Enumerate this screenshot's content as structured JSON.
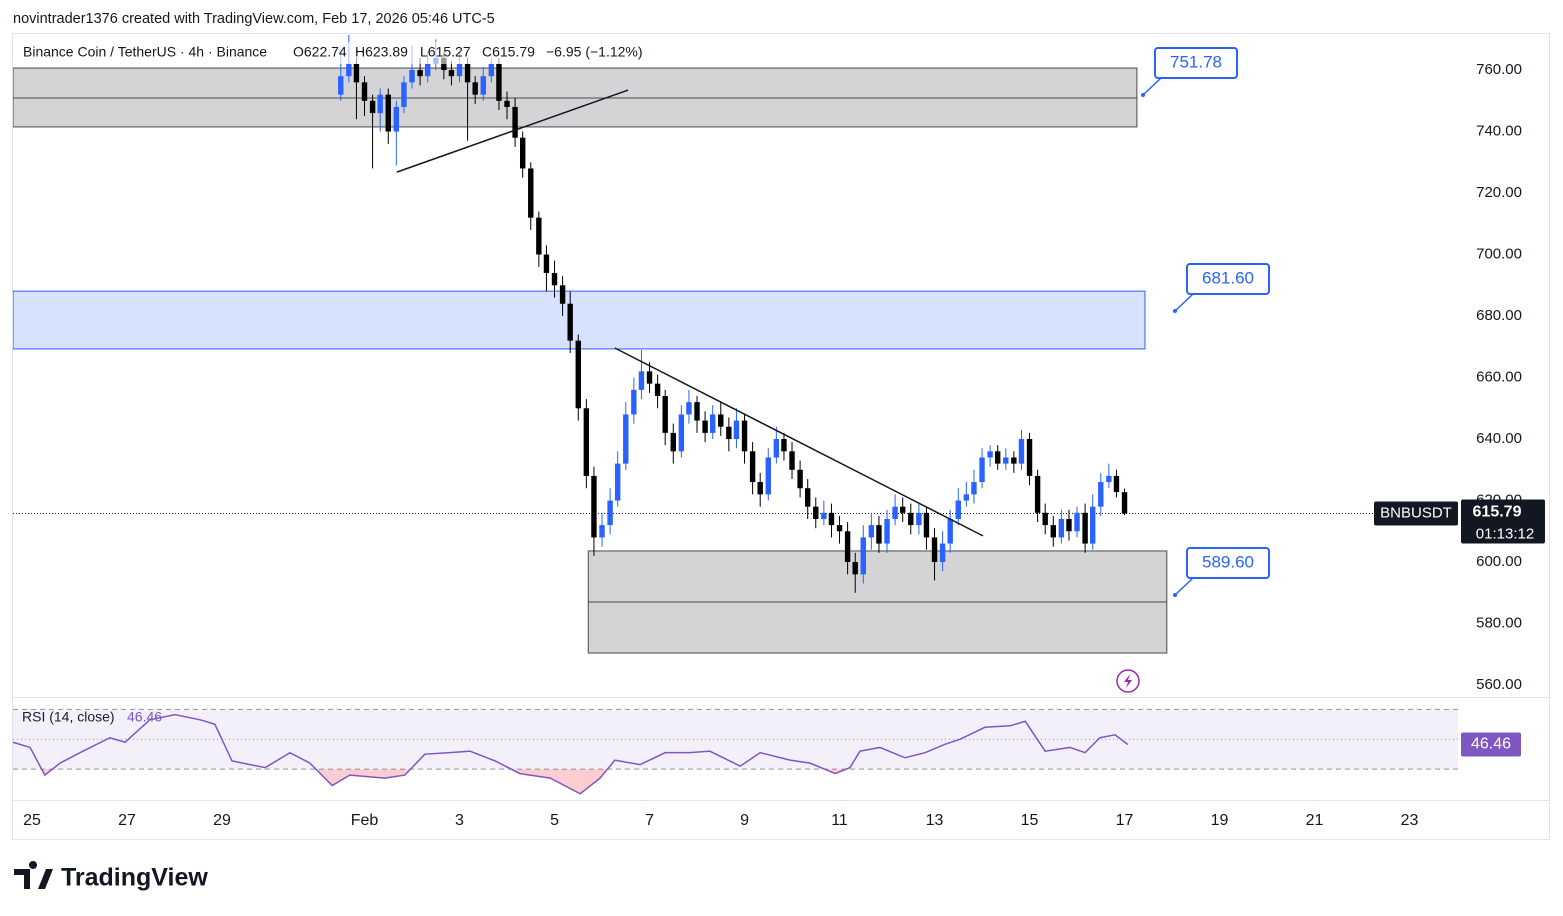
{
  "header": {
    "credit": "novintrader1376 created with TradingView.com, Feb 17, 2026 05:46 UTC-5",
    "symbol": "Binance Coin / TetherUS · 4h · Binance",
    "open": "O622.74",
    "high": "H623.89",
    "low": "L615.27",
    "close": "C615.79",
    "change": "−6.95 (−1.12%)"
  },
  "chart_data": {
    "type": "candlestick",
    "xlim": [
      -0.4,
      30.02
    ],
    "ylim": [
      556.1,
      771.4
    ],
    "xticks": [
      {
        "value": 0,
        "label": "25"
      },
      {
        "value": 2,
        "label": "27"
      },
      {
        "value": 4,
        "label": "29"
      },
      {
        "value": 7,
        "label": "Feb"
      },
      {
        "value": 9,
        "label": "3"
      },
      {
        "value": 11,
        "label": "5"
      },
      {
        "value": 13,
        "label": "7"
      },
      {
        "value": 15,
        "label": "9"
      },
      {
        "value": 17,
        "label": "11"
      },
      {
        "value": 19,
        "label": "13"
      },
      {
        "value": 21,
        "label": "15"
      },
      {
        "value": 23,
        "label": "17"
      },
      {
        "value": 25,
        "label": "19"
      },
      {
        "value": 27,
        "label": "21"
      },
      {
        "value": 29,
        "label": "23"
      }
    ],
    "yticks": [
      {
        "value": 560,
        "label": "560.00"
      },
      {
        "value": 580,
        "label": "580.00"
      },
      {
        "value": 600,
        "label": "600.00"
      },
      {
        "value": 620,
        "label": "620.00"
      },
      {
        "value": 640,
        "label": "640.00"
      },
      {
        "value": 660,
        "label": "660.00"
      },
      {
        "value": 680,
        "label": "680.00"
      },
      {
        "value": 700,
        "label": "700.00"
      },
      {
        "value": 720,
        "label": "720.00"
      },
      {
        "value": 740,
        "label": "740.00"
      },
      {
        "value": 760,
        "label": "760.00"
      }
    ],
    "grid": false,
    "up_color": "#2962ff",
    "down_color": "#000000",
    "candles": {
      "x": [
        6.5,
        6.67,
        6.83,
        7,
        7.17,
        7.33,
        7.5,
        7.67,
        7.83,
        8,
        8.17,
        8.33,
        8.5,
        8.67,
        8.83,
        9,
        9.17,
        9.33,
        9.5,
        9.67,
        9.83,
        10,
        10.17,
        10.33,
        10.5,
        10.67,
        10.83,
        11,
        11.17,
        11.33,
        11.5,
        11.67,
        11.83,
        12,
        12.17,
        12.33,
        12.5,
        12.67,
        12.83,
        13,
        13.17,
        13.33,
        13.5,
        13.67,
        13.83,
        14,
        14.17,
        14.33,
        14.5,
        14.67,
        14.83,
        15,
        15.17,
        15.33,
        15.5,
        15.67,
        15.83,
        16,
        16.17,
        16.33,
        16.5,
        16.67,
        16.83,
        17,
        17.17,
        17.33,
        17.5,
        17.67,
        17.83,
        18,
        18.17,
        18.33,
        18.5,
        18.67,
        18.83,
        19,
        19.17,
        19.33,
        19.5,
        19.67,
        19.83,
        20,
        20.17,
        20.33,
        20.5,
        20.67,
        20.83,
        21,
        21.17,
        21.33,
        21.5,
        21.67,
        21.83,
        22,
        22.17,
        22.33,
        22.5,
        22.67,
        22.83,
        23
      ],
      "open": [
        752,
        758,
        762,
        756,
        750,
        746,
        752,
        740,
        748,
        756,
        760,
        758,
        762,
        764,
        760,
        758,
        762,
        756,
        752,
        758,
        762,
        750,
        748,
        738,
        728,
        712,
        700,
        694,
        690,
        684,
        672,
        650,
        628,
        608,
        612,
        620,
        632,
        648,
        656,
        662,
        658,
        654,
        642,
        636,
        648,
        652,
        646,
        642,
        648,
        644,
        640,
        646,
        636,
        626,
        622,
        634,
        640,
        636,
        630,
        624,
        618,
        614,
        616,
        612,
        610,
        600,
        596,
        608,
        612,
        606,
        614,
        618,
        616,
        612,
        616,
        608,
        600,
        606,
        614,
        620,
        622,
        626,
        634,
        636,
        632,
        634,
        632,
        640,
        628,
        616,
        612,
        608,
        614,
        610,
        616,
        606,
        618,
        626,
        628,
        622.74
      ],
      "high": [
        766,
        772,
        764,
        758,
        752,
        754,
        754,
        750,
        758,
        768,
        764,
        766,
        770,
        766,
        763,
        766,
        764,
        758,
        761,
        764,
        764,
        753,
        751,
        740,
        730,
        714,
        703,
        698,
        693,
        688,
        674,
        653,
        631,
        616,
        624,
        636,
        652,
        660,
        669,
        665,
        661,
        656,
        645,
        651,
        656,
        654,
        649,
        651,
        652,
        647,
        650,
        648,
        639,
        629,
        637,
        644,
        642,
        639,
        633,
        627,
        621,
        620,
        619,
        615,
        613,
        603,
        612,
        616,
        615,
        617,
        622,
        621,
        619,
        619,
        618,
        611,
        610,
        617,
        624,
        626,
        630,
        637,
        638,
        638,
        637,
        636,
        643,
        642,
        630,
        619,
        615,
        617,
        617,
        618,
        619,
        622,
        629,
        632,
        630,
        623.89
      ],
      "low": [
        750,
        756,
        744,
        745,
        728,
        740,
        736,
        729,
        746,
        754,
        755,
        756,
        760,
        757,
        755,
        756,
        737,
        749,
        750,
        756,
        747,
        744,
        735,
        725,
        708,
        696,
        688,
        686,
        680,
        668,
        646,
        624,
        602,
        605,
        609,
        618,
        630,
        645,
        653,
        655,
        650,
        638,
        632,
        634,
        645,
        642,
        639,
        640,
        641,
        636,
        637,
        632,
        622,
        618,
        620,
        632,
        633,
        627,
        621,
        614,
        611,
        612,
        608,
        606,
        596,
        590,
        593,
        604,
        603,
        603,
        612,
        613,
        609,
        609,
        604,
        594,
        597,
        603,
        612,
        618,
        619,
        624,
        631,
        630,
        630,
        629,
        630,
        625,
        613,
        609,
        605,
        606,
        607,
        608,
        603,
        604,
        615,
        624,
        621,
        615.27
      ],
      "close": [
        758,
        762,
        756,
        750,
        746,
        752,
        740,
        748,
        756,
        760,
        758,
        762,
        764,
        760,
        758,
        762,
        756,
        752,
        758,
        762,
        750,
        748,
        738,
        728,
        712,
        700,
        694,
        690,
        684,
        672,
        650,
        628,
        608,
        612,
        620,
        632,
        648,
        656,
        662,
        658,
        654,
        642,
        636,
        648,
        652,
        646,
        642,
        648,
        644,
        640,
        646,
        636,
        626,
        622,
        634,
        640,
        636,
        630,
        624,
        618,
        614,
        616,
        612,
        610,
        600,
        596,
        608,
        612,
        606,
        614,
        618,
        616,
        612,
        616,
        608,
        600,
        606,
        614,
        620,
        622,
        626,
        634,
        636,
        632,
        634,
        632,
        640,
        628,
        616,
        612,
        608,
        614,
        610,
        616,
        606,
        618,
        626,
        628,
        622.74,
        615.79
      ]
    },
    "zones": [
      {
        "top": 760.65,
        "bottom": 741.5,
        "mid": 750.9,
        "x0": -0.4,
        "x1": 23.26,
        "fill": "#d4d4d6",
        "stroke": "#4a4a4a",
        "label": "751.78"
      },
      {
        "top": 688.1,
        "bottom": 669.3,
        "x0": -0.4,
        "x1": 23.43,
        "fill": "#d6e2ff",
        "stroke": "#2962ff",
        "label": "681.60"
      },
      {
        "top": 603.6,
        "bottom": 570.4,
        "mid": 587.0,
        "x0": 11.71,
        "x1": 23.89,
        "fill": "#d4d4d6",
        "stroke": "#4a4a4a",
        "label": "589.60"
      }
    ],
    "trendlines": [
      {
        "x": [
          7.68,
          12.55
        ],
        "y": [
          726.8,
          753.5
        ]
      },
      {
        "x": [
          12.27,
          20.02
        ],
        "y": [
          669.6,
          608.5
        ]
      }
    ],
    "symbol": "BNBUSDT",
    "last_price": "615.79",
    "countdown": "01:13:12",
    "rsi": {
      "title": "RSI (14, close)",
      "value_label": "46.46",
      "color": "#7e57c2",
      "ylim": [
        10,
        77.6
      ],
      "bands": [
        30,
        50,
        70
      ],
      "x": [
        -0.4,
        -0.04,
        0.27,
        0.59,
        1.01,
        1.64,
        1.96,
        2.48,
        3.01,
        3.54,
        3.85,
        4.21,
        4.59,
        4.91,
        5.43,
        5.85,
        6.32,
        6.69,
        7.43,
        7.85,
        8.27,
        8.8,
        9.22,
        9.75,
        10.27,
        10.91,
        11.54,
        11.96,
        12.27,
        12.8,
        13.33,
        13.85,
        14.27,
        14.91,
        15.33,
        15.96,
        16.38,
        16.91,
        17.22,
        17.43,
        17.85,
        18.38,
        18.8,
        19.22,
        19.54,
        20.06,
        20.59,
        20.91,
        21.33,
        21.85,
        22.17,
        22.48,
        22.8,
        23.07
      ],
      "values": [
        48,
        44.5,
        26,
        34,
        41,
        51,
        48,
        63,
        66.5,
        63,
        60,
        35.5,
        33,
        31,
        41,
        34,
        19,
        26,
        24,
        26,
        40,
        41,
        42,
        35.5,
        27,
        24,
        13.5,
        24,
        36,
        33,
        41,
        41,
        42,
        32,
        41,
        36,
        34,
        27,
        31,
        42,
        44.5,
        37.6,
        41,
        46.6,
        50,
        58,
        59,
        62,
        42,
        44.5,
        41,
        51,
        53,
        46.46
      ]
    }
  },
  "footer": {
    "brand": "TradingView"
  }
}
